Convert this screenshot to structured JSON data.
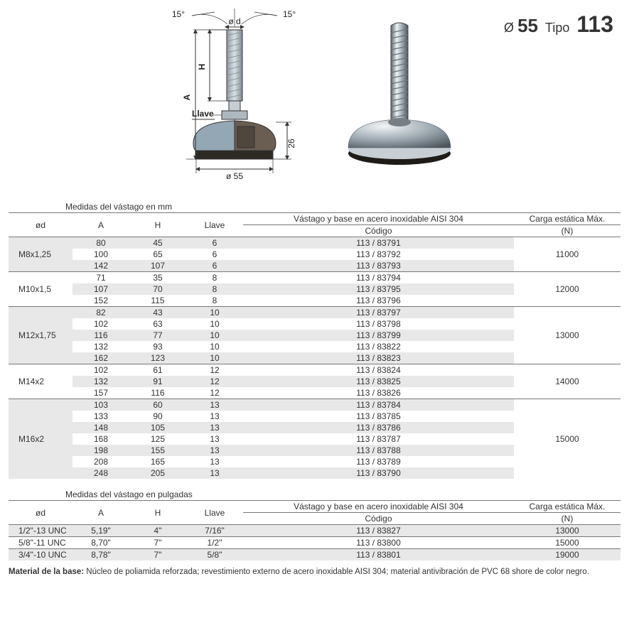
{
  "title": {
    "diameter": "Ø 55",
    "tipo_label": "Tipo",
    "tipo_num": "113"
  },
  "diagram": {
    "angle_left": "15°",
    "angle_right": "15°",
    "od_label": "ø d",
    "H_label": "H",
    "A_label": "A",
    "llave_label": "Llave",
    "base_h_label": "26",
    "base_d_label": "ø 55",
    "colors": {
      "steel_light": "#b8c4cc",
      "steel_dark": "#7f8b92",
      "base_cover": "#94a7b5",
      "base_core": "#5a4f46",
      "base_black": "#2d2923",
      "outline": "#333333"
    }
  },
  "table_mm": {
    "caption": "Medidas del vástago en mm",
    "head": {
      "od": "ød",
      "A": "A",
      "H": "H",
      "llave": "Llave",
      "stem_base": "Vástago y base en acero inoxidable AISI 304",
      "codigo": "Código",
      "load": "Carga estática Máx.",
      "load_unit": "(N)"
    },
    "groups": [
      {
        "od": "M8x1,25",
        "load": "11000",
        "rows": [
          {
            "A": "80",
            "H": "45",
            "llave": "6",
            "code": "113 / 83791"
          },
          {
            "A": "100",
            "H": "65",
            "llave": "6",
            "code": "113 / 83792"
          },
          {
            "A": "142",
            "H": "107",
            "llave": "6",
            "code": "113 / 83793"
          }
        ]
      },
      {
        "od": "M10x1,5",
        "load": "12000",
        "rows": [
          {
            "A": "71",
            "H": "35",
            "llave": "8",
            "code": "113 / 83794"
          },
          {
            "A": "107",
            "H": "70",
            "llave": "8",
            "code": "113 / 83795"
          },
          {
            "A": "152",
            "H": "115",
            "llave": "8",
            "code": "113 / 83796"
          }
        ]
      },
      {
        "od": "M12x1,75",
        "load": "13000",
        "rows": [
          {
            "A": "82",
            "H": "43",
            "llave": "10",
            "code": "113 / 83797"
          },
          {
            "A": "102",
            "H": "63",
            "llave": "10",
            "code": "113 / 83798"
          },
          {
            "A": "116",
            "H": "77",
            "llave": "10",
            "code": "113 / 83799"
          },
          {
            "A": "132",
            "H": "93",
            "llave": "10",
            "code": "113 / 83822"
          },
          {
            "A": "162",
            "H": "123",
            "llave": "10",
            "code": "113 / 83823"
          }
        ]
      },
      {
        "od": "M14x2",
        "load": "14000",
        "rows": [
          {
            "A": "102",
            "H": "61",
            "llave": "12",
            "code": "113 / 83824"
          },
          {
            "A": "132",
            "H": "91",
            "llave": "12",
            "code": "113 / 83825"
          },
          {
            "A": "157",
            "H": "116",
            "llave": "12",
            "code": "113 / 83826"
          }
        ]
      },
      {
        "od": "M16x2",
        "load": "15000",
        "rows": [
          {
            "A": "103",
            "H": "60",
            "llave": "13",
            "code": "113 / 83784"
          },
          {
            "A": "133",
            "H": "90",
            "llave": "13",
            "code": "113 / 83785"
          },
          {
            "A": "148",
            "H": "105",
            "llave": "13",
            "code": "113 / 83786"
          },
          {
            "A": "168",
            "H": "125",
            "llave": "13",
            "code": "113 / 83787"
          },
          {
            "A": "198",
            "H": "155",
            "llave": "13",
            "code": "113 / 83788"
          },
          {
            "A": "208",
            "H": "165",
            "llave": "13",
            "code": "113 / 83789"
          },
          {
            "A": "248",
            "H": "205",
            "llave": "13",
            "code": "113 / 83790"
          }
        ]
      }
    ]
  },
  "table_in": {
    "caption": "Medidas del vástago en pulgadas",
    "head": {
      "od": "ød",
      "A": "A",
      "H": "H",
      "llave": "Llave",
      "stem_base": "Vástago y base en acero inoxidable AISI 304",
      "codigo": "Código",
      "load": "Carga estática Máx.",
      "load_unit": "(N)"
    },
    "rows": [
      {
        "od": "1/2\"-13 UNC",
        "A": "5,19\"",
        "H": "4\"",
        "llave": "7/16\"",
        "code": "113 / 83827",
        "load": "13000"
      },
      {
        "od": "5/8\"-11 UNC",
        "A": "8,70\"",
        "H": "7\"",
        "llave": "1/2\"",
        "code": "113 / 83800",
        "load": "15000"
      },
      {
        "od": "3/4\"-10 UNC",
        "A": "8,78\"",
        "H": "7\"",
        "llave": "5/8\"",
        "code": "113 / 83801",
        "load": "19000"
      }
    ]
  },
  "footnote": {
    "label": "Material de la base:",
    "text": " Núcleo de poliamida reforzada; revestimiento externo de acero inoxidable AISI 304; material antivibración de PVC 68 shore de color negro."
  }
}
